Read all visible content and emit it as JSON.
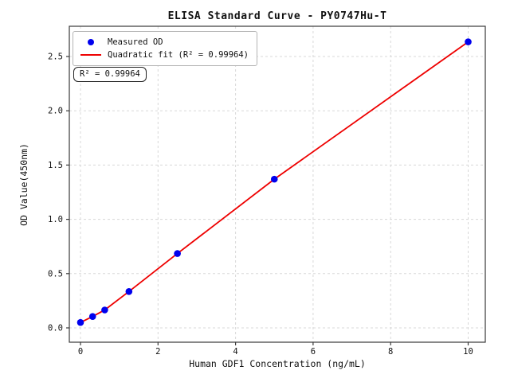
{
  "chart_data": {
    "type": "scatter",
    "title": "ELISA Standard Curve - PY0747Hu-T",
    "xlabel": "Human GDF1 Concentration (ng/mL)",
    "ylabel": "OD Value(450nm)",
    "x_ticks": [
      "0",
      "2",
      "4",
      "6",
      "8",
      "10"
    ],
    "y_ticks": [
      "0.0",
      "0.5",
      "1.0",
      "1.5",
      "2.0",
      "2.5"
    ],
    "xlim": [
      -0.29,
      10.44
    ],
    "ylim": [
      -0.13,
      2.78
    ],
    "grid": true,
    "legend_position": "upper left",
    "series": [
      {
        "name": "Measured OD",
        "type": "scatter",
        "color": "#0000ee",
        "x": [
          0,
          0.313,
          0.625,
          1.25,
          2.5,
          5,
          10
        ],
        "y": [
          0.05,
          0.105,
          0.165,
          0.335,
          0.685,
          1.37,
          2.635
        ]
      },
      {
        "name": "Quadratic fit (R² = 0.99964)",
        "type": "line",
        "color": "#ee0000",
        "r_squared": 0.99964
      }
    ],
    "annotation": {
      "text": "R² = 0.99964"
    },
    "colors": {
      "grid": "#d8d8d8",
      "spine": "#3a3a3a",
      "tick_text": "#111111",
      "background": "#ffffff"
    }
  }
}
